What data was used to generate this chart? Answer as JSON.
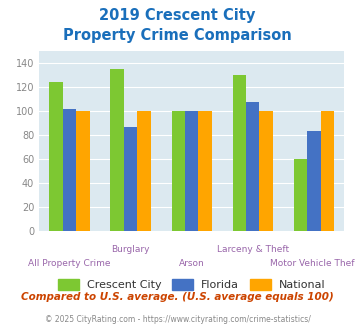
{
  "title_line1": "2019 Crescent City",
  "title_line2": "Property Crime Comparison",
  "title_color": "#1a6fbb",
  "crescent_city": [
    124,
    135,
    100,
    130,
    60
  ],
  "florida": [
    102,
    87,
    100,
    108,
    83
  ],
  "national": [
    100,
    100,
    100,
    100,
    100
  ],
  "bar_colors": {
    "crescent_city": "#7dc832",
    "florida": "#4472c4",
    "national": "#ffa500"
  },
  "ylim": [
    0,
    150
  ],
  "yticks": [
    0,
    20,
    40,
    60,
    80,
    100,
    120,
    140
  ],
  "chart_bg": "#dce9f0",
  "legend_labels": [
    "Crescent City",
    "Florida",
    "National"
  ],
  "footnote1": "Compared to U.S. average. (U.S. average equals 100)",
  "footnote2": "© 2025 CityRating.com - https://www.cityrating.com/crime-statistics/",
  "footnote1_color": "#cc4400",
  "footnote2_color": "#888888",
  "xlabel_color": "#9966aa",
  "tick_label_color": "#888888",
  "top_labels": [
    "",
    "Burglary",
    "",
    "Larceny & Theft",
    ""
  ],
  "bottom_labels": [
    "All Property Crime",
    "",
    "Arson",
    "",
    "Motor Vehicle Theft"
  ]
}
